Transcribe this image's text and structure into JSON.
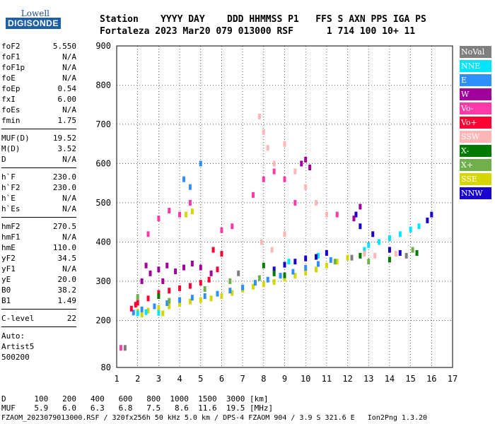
{
  "logo": {
    "brand_top": "Lowell",
    "brand_bottom": "DIGISONDE"
  },
  "header": {
    "line1": "Station    YYYY DAY    DDD HHMMSS P1   FFS S AXN PPS IGA PS",
    "line2": "Fortaleza 2023 Mar20 079 013000 RSF      1 714 100 10+ 11"
  },
  "params": [
    [
      {
        "k": "foF2",
        "v": "5.550"
      },
      {
        "k": "foF1",
        "v": "N/A"
      },
      {
        "k": "foF1p",
        "v": "N/A"
      },
      {
        "k": "foE",
        "v": "N/A"
      },
      {
        "k": "foEp",
        "v": "0.54"
      },
      {
        "k": "fxI",
        "v": "6.00"
      },
      {
        "k": "foEs",
        "v": "N/A"
      },
      {
        "k": "fmin",
        "v": "1.75"
      }
    ],
    [
      {
        "k": "MUF(D)",
        "v": "19.52"
      },
      {
        "k": "M(D)",
        "v": "3.52"
      },
      {
        "k": "D",
        "v": "N/A"
      }
    ],
    [
      {
        "k": "h`F",
        "v": "230.0"
      },
      {
        "k": "h`F2",
        "v": "230.0"
      },
      {
        "k": "h`E",
        "v": "N/A"
      },
      {
        "k": "h`Es",
        "v": "N/A"
      }
    ],
    [
      {
        "k": "hmF2",
        "v": "270.5"
      },
      {
        "k": "hmF1",
        "v": "N/A"
      },
      {
        "k": "hmE",
        "v": "110.0"
      },
      {
        "k": "yF2",
        "v": "34.5"
      },
      {
        "k": "yF1",
        "v": "N/A"
      },
      {
        "k": "yE",
        "v": "20.0"
      },
      {
        "k": "B0",
        "v": "38.2"
      },
      {
        "k": "B1",
        "v": "1.49"
      }
    ]
  ],
  "clevel": {
    "k": "C-level",
    "v": "22"
  },
  "auto": [
    "Auto:",
    "Artist5",
    "500200"
  ],
  "footer": {
    "d_row": "D      100   200   400   600   800  1000  1500  3000 [km]",
    "muf_row": "MUF    5.9   6.0   6.3   6.8   7.5   8.6  11.6  19.5 [MHz]",
    "file_row": "FZAOM_2023079013000.RSF / 320fx256h 50 kHz 5.0 km / DPS-4 FZAOM 904 / 3.9 S 321.6 E   Ion2Png 1.3.20"
  },
  "legend": [
    {
      "label": "NoVal",
      "color": "#7f7f7f"
    },
    {
      "label": "NNE",
      "color": "#00e5ff"
    },
    {
      "label": "E",
      "color": "#2e90ff"
    },
    {
      "label": "W",
      "color": "#a0009a"
    },
    {
      "label": "Vo-",
      "color": "#ff3aa8"
    },
    {
      "label": "Vo+",
      "color": "#ff0033"
    },
    {
      "label": "SSW",
      "color": "#ffb6b6"
    },
    {
      "label": "X-",
      "color": "#007a00"
    },
    {
      "label": "X+",
      "color": "#6fb04a"
    },
    {
      "label": "SSE",
      "color": "#d6d600"
    },
    {
      "label": "NNW",
      "color": "#1a00cc"
    }
  ],
  "chart_data": {
    "type": "scatter",
    "title": "",
    "xlabel": "",
    "ylabel": "",
    "xlim": [
      1,
      17
    ],
    "ylim": [
      80,
      900
    ],
    "x_ticks": [
      1,
      2,
      3,
      4,
      5,
      6,
      7,
      8,
      9,
      10,
      11,
      12,
      13,
      14,
      15,
      16,
      17
    ],
    "y_ticks": [
      80,
      200,
      300,
      400,
      500,
      600,
      700,
      800,
      900
    ],
    "grid": true,
    "legend_position": "right",
    "series": [
      {
        "name": "SSE",
        "points": [
          [
            2.0,
            222
          ],
          [
            2.5,
            225
          ],
          [
            3.0,
            232
          ],
          [
            3.5,
            236
          ],
          [
            4.0,
            242
          ],
          [
            4.5,
            248
          ],
          [
            5.0,
            252
          ],
          [
            5.5,
            256
          ],
          [
            6.0,
            262
          ],
          [
            6.5,
            270
          ],
          [
            7.0,
            278
          ],
          [
            7.5,
            286
          ],
          [
            8.0,
            292
          ],
          [
            8.5,
            298
          ],
          [
            9.0,
            306
          ],
          [
            9.5,
            314
          ],
          [
            10.0,
            322
          ],
          [
            10.5,
            330
          ],
          [
            11.0,
            340
          ],
          [
            11.5,
            350
          ],
          [
            12.0,
            360
          ],
          [
            2.2,
            215
          ],
          [
            3.2,
            218
          ],
          [
            4.3,
            470
          ],
          [
            4.6,
            478
          ]
        ]
      },
      {
        "name": "E",
        "points": [
          [
            1.8,
            220
          ],
          [
            2.2,
            228
          ],
          [
            2.8,
            236
          ],
          [
            3.4,
            244
          ],
          [
            4.0,
            252
          ],
          [
            4.6,
            258
          ],
          [
            5.2,
            262
          ],
          [
            5.8,
            268
          ],
          [
            6.4,
            276
          ],
          [
            7.0,
            284
          ],
          [
            7.6,
            296
          ],
          [
            8.2,
            304
          ],
          [
            8.8,
            314
          ],
          [
            9.4,
            324
          ],
          [
            10.0,
            334
          ],
          [
            10.6,
            344
          ],
          [
            11.2,
            354
          ],
          [
            4.2,
            560
          ],
          [
            4.5,
            540
          ],
          [
            5.0,
            600
          ]
        ]
      },
      {
        "name": "NNE",
        "points": [
          [
            13.0,
            392
          ],
          [
            13.5,
            400
          ],
          [
            14.0,
            410
          ],
          [
            14.5,
            420
          ],
          [
            15.0,
            432
          ],
          [
            15.4,
            440
          ],
          [
            12.8,
            380
          ],
          [
            2.0,
            218
          ],
          [
            2.4,
            221
          ],
          [
            3.0,
            219
          ],
          [
            9.2,
            350
          ],
          [
            10.6,
            365
          ]
        ]
      },
      {
        "name": "NNW",
        "points": [
          [
            8.5,
            330
          ],
          [
            9.0,
            342
          ],
          [
            9.5,
            350
          ],
          [
            10.0,
            358
          ],
          [
            10.5,
            362
          ],
          [
            11.0,
            372
          ],
          [
            12.4,
            470
          ],
          [
            12.6,
            440
          ],
          [
            13.2,
            420
          ],
          [
            14.0,
            380
          ],
          [
            14.5,
            372
          ],
          [
            15.8,
            455
          ],
          [
            16.0,
            470
          ]
        ]
      },
      {
        "name": "W",
        "points": [
          [
            2.2,
            300
          ],
          [
            2.6,
            320
          ],
          [
            3.0,
            330
          ],
          [
            3.4,
            340
          ],
          [
            3.8,
            325
          ],
          [
            4.2,
            335
          ],
          [
            4.6,
            345
          ],
          [
            5.0,
            335
          ],
          [
            5.5,
            320
          ],
          [
            2.4,
            340
          ],
          [
            3.2,
            300
          ],
          [
            9.8,
            600
          ],
          [
            10.0,
            610
          ],
          [
            10.2,
            590
          ],
          [
            12.6,
            490
          ],
          [
            12.3,
            460
          ]
        ]
      },
      {
        "name": "Vo-",
        "points": [
          [
            2.5,
            420
          ],
          [
            3.0,
            460
          ],
          [
            3.5,
            480
          ],
          [
            4.0,
            470
          ],
          [
            4.5,
            500
          ],
          [
            6.0,
            430
          ],
          [
            6.5,
            440
          ],
          [
            7.5,
            520
          ],
          [
            8.0,
            560
          ],
          [
            8.5,
            580
          ],
          [
            9.0,
            560
          ],
          [
            9.5,
            500
          ],
          [
            11.5,
            470
          ],
          [
            1.2,
            130
          ]
        ]
      },
      {
        "name": "Vo+",
        "points": [
          [
            2.0,
            245
          ],
          [
            2.5,
            256
          ],
          [
            3.0,
            270
          ],
          [
            3.5,
            276
          ],
          [
            4.0,
            282
          ],
          [
            4.5,
            288
          ],
          [
            5.0,
            296
          ],
          [
            5.4,
            304
          ],
          [
            5.8,
            330
          ],
          [
            6.0,
            370
          ],
          [
            5.6,
            380
          ],
          [
            1.7,
            230
          ],
          [
            1.9,
            240
          ]
        ]
      },
      {
        "name": "SSW",
        "points": [
          [
            7.8,
            720
          ],
          [
            8.0,
            680
          ],
          [
            8.2,
            640
          ],
          [
            8.5,
            600
          ],
          [
            9.0,
            650
          ],
          [
            9.5,
            580
          ],
          [
            10.0,
            540
          ],
          [
            10.5,
            500
          ],
          [
            11.0,
            470
          ],
          [
            7.9,
            400
          ],
          [
            8.4,
            380
          ],
          [
            9.0,
            420
          ],
          [
            12.8,
            370
          ],
          [
            13.3,
            365
          ],
          [
            14.3,
            370
          ]
        ]
      },
      {
        "name": "X-",
        "points": [
          [
            8.0,
            340
          ],
          [
            8.5,
            320
          ],
          [
            9.0,
            315
          ],
          [
            12.6,
            365
          ],
          [
            14.0,
            355
          ],
          [
            15.3,
            372
          ],
          [
            3.0,
            262
          ]
        ]
      },
      {
        "name": "X+",
        "points": [
          [
            2.0,
            260
          ],
          [
            3.5,
            250
          ],
          [
            5.2,
            280
          ],
          [
            6.4,
            300
          ],
          [
            7.8,
            308
          ],
          [
            11.4,
            350
          ],
          [
            13.0,
            350
          ],
          [
            15.1,
            380
          ]
        ]
      },
      {
        "name": "NoVal",
        "points": [
          [
            1.4,
            130
          ],
          [
            6.8,
            320
          ],
          [
            12.2,
            360
          ],
          [
            14.8,
            365
          ]
        ]
      }
    ]
  }
}
